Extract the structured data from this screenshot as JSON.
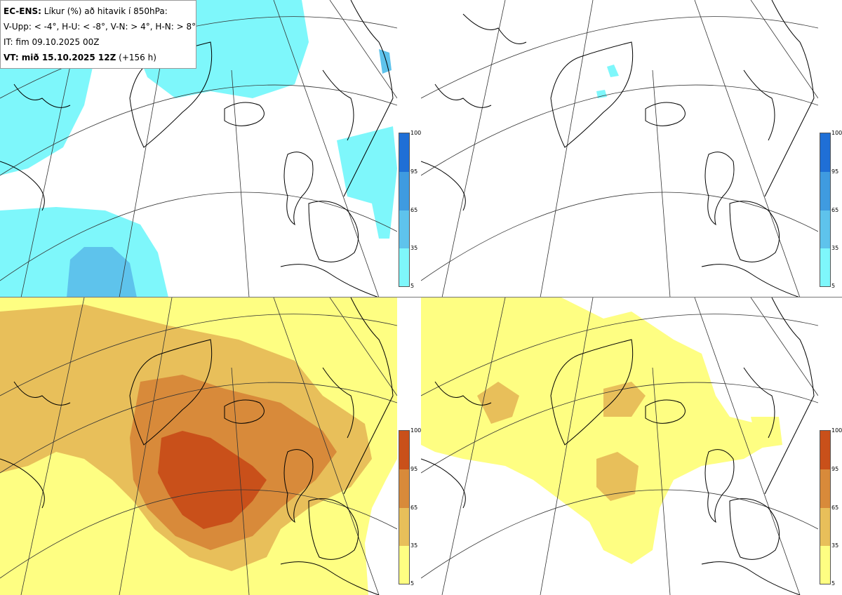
{
  "legend": {
    "line1_bold": "EC-ENS:",
    "line1_rest": " Líkur (%) að hitavik í 850hPa:",
    "line2": "V-Upp: < -4°, H-U: < -8°, V-N: > 4°, H-N: > 8°",
    "line3": "IT: fim 09.10.2025 00Z",
    "line4_bold": "VT: mið 15.10.2025 12Z",
    "line4_rest": " (+156 h)"
  },
  "colorbars": {
    "cold": {
      "ticks": [
        "100",
        "95",
        "65",
        "35",
        "5"
      ],
      "colors": [
        "#1f6fd6",
        "#3f9be0",
        "#5ec3ec",
        "#7ef7fb"
      ]
    },
    "warm": {
      "ticks": [
        "100",
        "95",
        "65",
        "35",
        "5"
      ],
      "colors": [
        "#c9501a",
        "#d88a3a",
        "#e8bf5a",
        "#fefe82"
      ]
    }
  },
  "panels": [
    {
      "id": "vupp",
      "title": "V-Upp",
      "threshold": "< -4°",
      "palette": "cold"
    },
    {
      "id": "hu",
      "title": "H-U",
      "threshold": "< -8°",
      "palette": "cold"
    },
    {
      "id": "vn",
      "title": "V-N",
      "threshold": "> 4°",
      "palette": "warm"
    },
    {
      "id": "hn",
      "title": "H-N",
      "threshold": "> 8°",
      "palette": "warm"
    }
  ]
}
